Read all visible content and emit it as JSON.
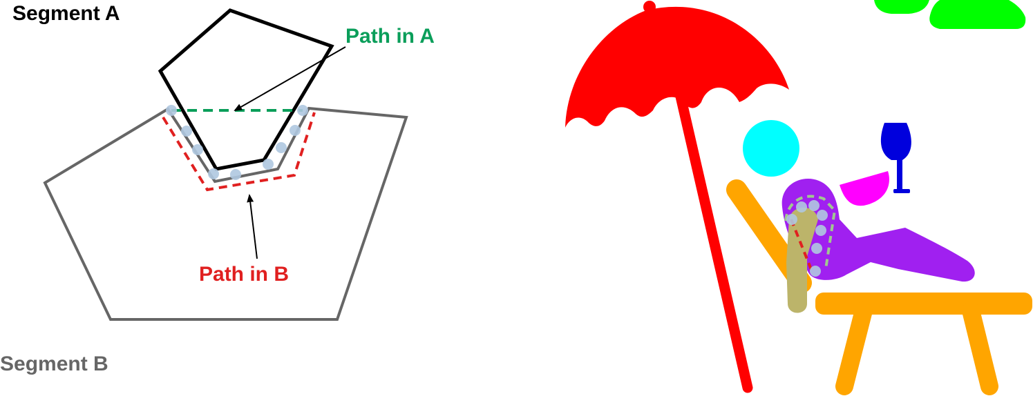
{
  "left_panel": {
    "segment_a_label": "Segment A",
    "segment_b_label": "Segment B",
    "path_a_label": "Path in A",
    "path_b_label": "Path in B"
  },
  "colors": {
    "segment_a": "#000000",
    "segment_b": "#666666",
    "path_a": "#0a9e5a",
    "path_b": "#e02020",
    "boundary_points": "#b0c8e0",
    "umbrella": "#ff0000",
    "head": "#00ffff",
    "glass": "#0000dd",
    "glass_liquid": "#ff00ff",
    "body": "#a020f0",
    "chair": "#ffa500",
    "arm": "#bcb46a",
    "clouds": "#00ff00"
  },
  "icons": {
    "right_panel": "beach-lounger-illustration"
  }
}
